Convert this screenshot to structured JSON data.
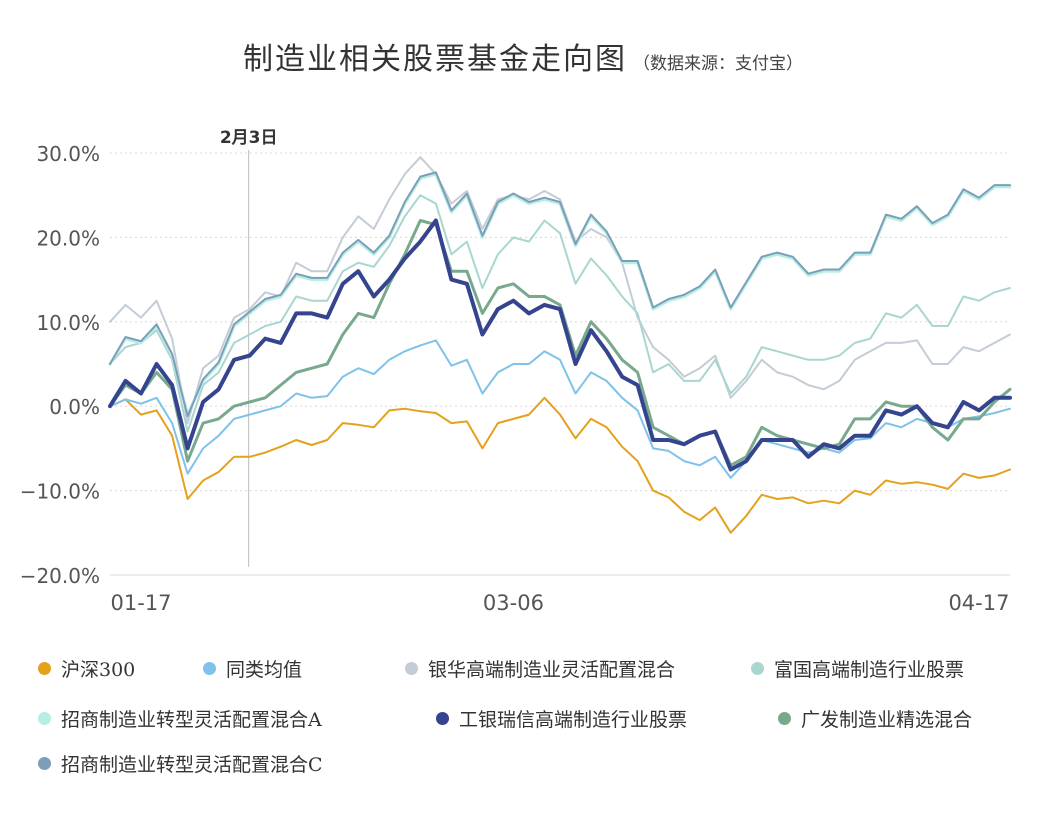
{
  "title": "制造业相关股票基金走向图",
  "subtitle": "（数据来源：支付宝）",
  "chart_data": {
    "type": "line",
    "x_ticks": [
      "01-17",
      "03-06",
      "04-17"
    ],
    "yticks": [
      "30.0%",
      "20.0%",
      "10.0%",
      "0.0%",
      "−10.0%",
      "−20.0%"
    ],
    "ylim": [
      -20,
      30
    ],
    "grid": "horizontal-dotted",
    "legend_position": "bottom",
    "annotation": {
      "label": "2月3日",
      "x_index": 9
    },
    "series": [
      {
        "name": "沪深300",
        "color": "#E5A11C",
        "width": 2,
        "values": [
          0,
          0.8,
          -1,
          -0.5,
          -3.5,
          -11,
          -8.8,
          -7.8,
          -6,
          -6,
          -5.5,
          -4.8,
          -4,
          -4.6,
          -4,
          -2,
          -2.2,
          -2.5,
          -0.5,
          -0.3,
          -0.6,
          -0.8,
          -2,
          -1.8,
          -5,
          -2,
          -1.5,
          -1,
          1,
          -1,
          -3.8,
          -1.5,
          -2.5,
          -4.8,
          -6.5,
          -10,
          -10.8,
          -12.5,
          -13.5,
          -12,
          -15,
          -13,
          -10.5,
          -11,
          -10.8,
          -11.5,
          -11.2,
          -11.5,
          -10,
          -10.5,
          -8.8,
          -9.2,
          -9,
          -9.3,
          -9.8,
          -8,
          -8.5,
          -8.2,
          -7.5
        ]
      },
      {
        "name": "同类均值",
        "color": "#7FC2EA",
        "width": 2,
        "values": [
          0,
          0.8,
          0.3,
          1,
          -2,
          -8,
          -5,
          -3.5,
          -1.5,
          -1,
          -0.5,
          0,
          1.5,
          1,
          1.2,
          3.5,
          4.5,
          3.8,
          5.5,
          6.5,
          7.2,
          7.8,
          4.8,
          5.5,
          1.5,
          4,
          5,
          5,
          6.5,
          5.5,
          1.5,
          4,
          3,
          1,
          -0.5,
          -5,
          -5.3,
          -6.5,
          -7,
          -6,
          -8.5,
          -6.5,
          -4,
          -4.5,
          -5,
          -5.5,
          -5,
          -5.5,
          -4,
          -3.8,
          -2,
          -2.5,
          -1.5,
          -2,
          -2.5,
          -1.5,
          -1.2,
          -0.8,
          -0.3
        ]
      },
      {
        "name": "银华高端制造业灵活配置混合",
        "color": "#C4CCD6",
        "width": 2,
        "values": [
          10,
          12,
          10.5,
          12.5,
          8,
          -2,
          4.5,
          6,
          10.5,
          11.5,
          13.5,
          13,
          17,
          16,
          16,
          20,
          22.5,
          21,
          24.5,
          27.5,
          29.5,
          27.5,
          24,
          25.5,
          21,
          24.5,
          25,
          24.5,
          25.5,
          24.5,
          19.5,
          21,
          20,
          17,
          10.5,
          7,
          5.5,
          3.5,
          4.5,
          6,
          1,
          3,
          5.5,
          4,
          3.5,
          2.5,
          2,
          3,
          5.5,
          6.5,
          7.5,
          7.5,
          7.8,
          5,
          5,
          7,
          6.5,
          7.5,
          8.5
        ]
      },
      {
        "name": "富国高端制造行业股票",
        "color": "#A9D6D1",
        "width": 2,
        "values": [
          5,
          7,
          7.5,
          9,
          5.5,
          -3,
          2.5,
          4,
          7.5,
          8.5,
          9.5,
          10,
          13,
          12.5,
          12.5,
          16,
          17,
          16.5,
          19,
          22.5,
          25,
          24,
          18,
          19.5,
          14,
          18,
          20,
          19.5,
          22,
          20.5,
          14.5,
          17.5,
          15.5,
          13,
          11,
          4,
          5,
          3,
          3,
          5.5,
          1.5,
          3.5,
          7,
          6.5,
          6,
          5.5,
          5.5,
          6,
          7.5,
          8,
          11,
          10.5,
          12,
          9.5,
          9.5,
          13,
          12.5,
          13.5,
          14
        ]
      },
      {
        "name": "招商制造业转型灵活配置混合A",
        "color": "#B6EEE3",
        "width": 3,
        "values": [
          5,
          8,
          7.5,
          9.5,
          6,
          -1,
          3,
          5,
          9.5,
          11,
          12.5,
          13,
          15.5,
          15,
          15,
          18,
          19.5,
          18,
          20,
          24,
          27,
          27.5,
          23,
          25,
          20,
          24,
          25,
          24,
          24.5,
          24,
          19,
          22.5,
          20.5,
          17,
          17,
          11.5,
          12.5,
          13,
          14,
          16,
          11.5,
          14.5,
          17.5,
          18,
          17.5,
          15.5,
          16,
          16,
          18,
          18,
          22.5,
          22,
          23.5,
          21.5,
          22.5,
          25.5,
          24.5,
          26,
          26
        ]
      },
      {
        "name": "招商制造业转型灵活配置混合C",
        "color": "#7D9EB9",
        "width": 2,
        "values": [
          5,
          8.2,
          7.7,
          9.7,
          6.2,
          -1.2,
          3.2,
          5.2,
          9.7,
          11.2,
          12.7,
          13.2,
          15.7,
          15.2,
          15.2,
          18.2,
          19.7,
          18.2,
          20.2,
          24.2,
          27.2,
          27.7,
          23.2,
          25.2,
          20.2,
          24.2,
          25.2,
          24.2,
          24.7,
          24.2,
          19.2,
          22.7,
          20.7,
          17.2,
          17.2,
          11.7,
          12.7,
          13.2,
          14.2,
          16.2,
          11.7,
          14.7,
          17.7,
          18.2,
          17.7,
          15.7,
          16.2,
          16.2,
          18.2,
          18.2,
          22.7,
          22.2,
          23.7,
          21.7,
          22.7,
          25.7,
          24.7,
          26.2,
          26.2
        ]
      },
      {
        "name": "广发制造业精选混合",
        "color": "#78A98D",
        "width": 3,
        "values": [
          0,
          2.5,
          1.5,
          4,
          2,
          -6.5,
          -2,
          -1.5,
          0,
          0.5,
          1,
          2.5,
          4,
          4.5,
          5,
          8.5,
          11,
          10.5,
          14.5,
          18,
          22,
          21.5,
          16,
          16,
          11,
          14,
          14.5,
          13,
          13,
          12,
          6,
          10,
          8,
          5.5,
          4,
          -2.5,
          -3.5,
          -4.5,
          -3.5,
          -3,
          -7,
          -6,
          -2.5,
          -3.5,
          -4,
          -4.5,
          -5,
          -4.5,
          -1.5,
          -1.5,
          0.5,
          0,
          0,
          -2.5,
          -4,
          -1.5,
          -1.5,
          0.5,
          2
        ]
      },
      {
        "name": "工银瑞信高端制造行业股票",
        "color": "#34448E",
        "width": 4,
        "values": [
          0,
          3,
          1.5,
          5,
          2.5,
          -5,
          0.5,
          2,
          5.5,
          6,
          8,
          7.5,
          11,
          11,
          10.5,
          14.5,
          16,
          13,
          15,
          17.5,
          19.5,
          22,
          15,
          14.5,
          8.5,
          11.5,
          12.5,
          11,
          12,
          11.5,
          5,
          9,
          6.5,
          3.5,
          2.5,
          -4,
          -4,
          -4.5,
          -3.5,
          -3,
          -7.5,
          -6.5,
          -4,
          -4,
          -4,
          -6,
          -4.5,
          -5,
          -3.5,
          -3.5,
          -0.5,
          -1,
          0,
          -2,
          -2.5,
          0.5,
          -0.5,
          1,
          1
        ]
      }
    ]
  }
}
